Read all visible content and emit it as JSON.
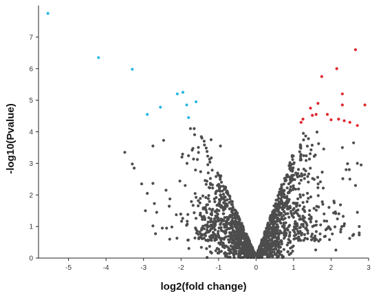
{
  "chart_data": {
    "type": "scatter",
    "title": "",
    "xlabel": "log2(fold change)",
    "ylabel": "-log10(Pvalue)",
    "xlim": [
      -5.8,
      3.0
    ],
    "ylim": [
      0,
      8.0
    ],
    "x_ticks": [
      -5,
      -4,
      -3,
      -2,
      -1,
      0,
      1,
      2,
      3
    ],
    "y_ticks": [
      0,
      1,
      2,
      3,
      4,
      5,
      6,
      7
    ],
    "grid": false,
    "legend": "none",
    "colors": {
      "down": "#2ab7e6",
      "up": "#e0282d",
      "neutral": "#4d4d4d"
    },
    "series": [
      {
        "key": "down",
        "points": [
          [
            -5.55,
            7.75
          ],
          [
            -4.2,
            6.35
          ],
          [
            -3.3,
            5.98
          ],
          [
            -2.1,
            5.2
          ],
          [
            -1.95,
            5.25
          ],
          [
            -1.6,
            4.95
          ],
          [
            -1.85,
            4.85
          ],
          [
            -2.55,
            4.78
          ],
          [
            -2.9,
            4.55
          ],
          [
            -1.8,
            4.45
          ]
        ]
      },
      {
        "key": "up",
        "points": [
          [
            2.65,
            6.6
          ],
          [
            2.15,
            6.0
          ],
          [
            1.75,
            5.75
          ],
          [
            2.3,
            5.2
          ],
          [
            2.3,
            4.85
          ],
          [
            2.9,
            4.85
          ],
          [
            1.65,
            4.9
          ],
          [
            1.45,
            4.75
          ],
          [
            1.6,
            4.55
          ],
          [
            1.5,
            4.52
          ],
          [
            1.9,
            4.55
          ],
          [
            2.2,
            4.4
          ],
          [
            2.0,
            4.38
          ],
          [
            1.25,
            4.4
          ],
          [
            2.35,
            4.35
          ],
          [
            2.5,
            4.3
          ],
          [
            1.2,
            4.3
          ],
          [
            2.7,
            4.2
          ]
        ]
      },
      {
        "key": "neutral",
        "count": 1700,
        "points": [
          [
            -1.75,
            4.1
          ],
          [
            -1.65,
            4.1
          ],
          [
            -3.5,
            3.35
          ],
          [
            -3.3,
            2.98
          ],
          [
            -3.25,
            2.85
          ],
          [
            -2.75,
            3.55
          ],
          [
            -3.05,
            2.35
          ],
          [
            -2.9,
            2.05
          ],
          [
            -2.95,
            1.5
          ],
          [
            -2.65,
            1.45
          ],
          [
            -2.5,
            0.95
          ],
          [
            -2.4,
            2.15
          ],
          [
            -1.2,
            3.75
          ],
          [
            -0.95,
            3.55
          ],
          [
            2.7,
            3.0
          ],
          [
            2.8,
            2.95
          ],
          [
            2.65,
            2.3
          ],
          [
            2.7,
            1.45
          ],
          [
            2.75,
            1.0
          ],
          [
            2.6,
            0.75
          ],
          [
            2.4,
            2.8
          ],
          [
            2.5,
            2.5
          ],
          [
            2.3,
            3.5
          ],
          [
            2.6,
            3.65
          ]
        ]
      }
    ]
  }
}
